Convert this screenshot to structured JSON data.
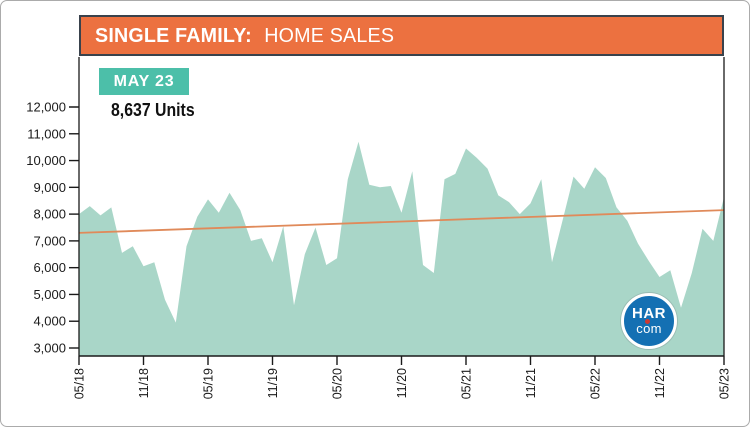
{
  "header": {
    "title_bold": "SINGLE FAMILY:",
    "title_regular": "HOME SALES"
  },
  "callout": {
    "badge_label": "MAY 23",
    "units_label": "8,637 Units"
  },
  "logo": {
    "line1": "HAR",
    "line2": "com"
  },
  "colors": {
    "header_bg": "#ec7140",
    "frame_border": "#39424c",
    "area_fill": "#a9d6c8",
    "trend_line": "#e08a5a",
    "badge_bg": "#4cbfa9",
    "logo_blue": "#1470b3",
    "logo_dot": "#cf3a33",
    "axis": "#1a1a1a",
    "outer_border": "#ababab"
  },
  "chart_data": {
    "type": "area",
    "title": "SINGLE FAMILY: HOME SALES",
    "xlabel": "",
    "ylabel": "",
    "ylim": [
      3000,
      12000
    ],
    "grid": false,
    "legend": false,
    "y_tick_values": [
      3000,
      4000,
      5000,
      6000,
      7000,
      8000,
      9000,
      10000,
      11000,
      12000
    ],
    "y_tick_labels": [
      "3,000",
      "4,000",
      "5,000",
      "6,000",
      "7,000",
      "8,000",
      "9,000",
      "10,000",
      "11,000",
      "12,000"
    ],
    "x_tick_labels": [
      "05/18",
      "11/18",
      "05/19",
      "11/19",
      "05/20",
      "11/20",
      "05/21",
      "11/21",
      "05/22",
      "11/22",
      "05/23"
    ],
    "x_tick_every_n_months": 6,
    "months": [
      "05/18",
      "06/18",
      "07/18",
      "08/18",
      "09/18",
      "10/18",
      "11/18",
      "12/18",
      "01/19",
      "02/19",
      "03/19",
      "04/19",
      "05/19",
      "06/19",
      "07/19",
      "08/19",
      "09/19",
      "10/19",
      "11/19",
      "12/19",
      "01/20",
      "02/20",
      "03/20",
      "04/20",
      "05/20",
      "06/20",
      "07/20",
      "08/20",
      "09/20",
      "10/20",
      "11/20",
      "12/20",
      "01/21",
      "02/21",
      "03/21",
      "04/21",
      "05/21",
      "06/21",
      "07/21",
      "08/21",
      "09/21",
      "10/21",
      "11/21",
      "12/21",
      "01/22",
      "02/22",
      "03/22",
      "04/22",
      "05/22",
      "06/22",
      "07/22",
      "08/22",
      "09/22",
      "10/22",
      "11/22",
      "12/22",
      "01/23",
      "02/23",
      "03/23",
      "04/23",
      "05/23"
    ],
    "values": [
      8000,
      8300,
      7950,
      8250,
      6550,
      6800,
      6050,
      6200,
      4800,
      3950,
      6800,
      7900,
      8550,
      8050,
      8800,
      8150,
      7000,
      7100,
      6200,
      7550,
      4600,
      6500,
      7500,
      6100,
      6350,
      9300,
      10700,
      9100,
      9000,
      9050,
      8050,
      9600,
      6100,
      5800,
      9300,
      9500,
      10450,
      10100,
      9700,
      8700,
      8450,
      8000,
      8400,
      9300,
      6200,
      7800,
      9400,
      8950,
      9750,
      9350,
      8250,
      7750,
      6900,
      6250,
      5650,
      5900,
      4500,
      5800,
      7450,
      7000,
      8637
    ],
    "latest_point": {
      "month": "05/23",
      "value": 8637
    },
    "trend_line": {
      "start_value": 7300,
      "end_value": 8150
    }
  }
}
